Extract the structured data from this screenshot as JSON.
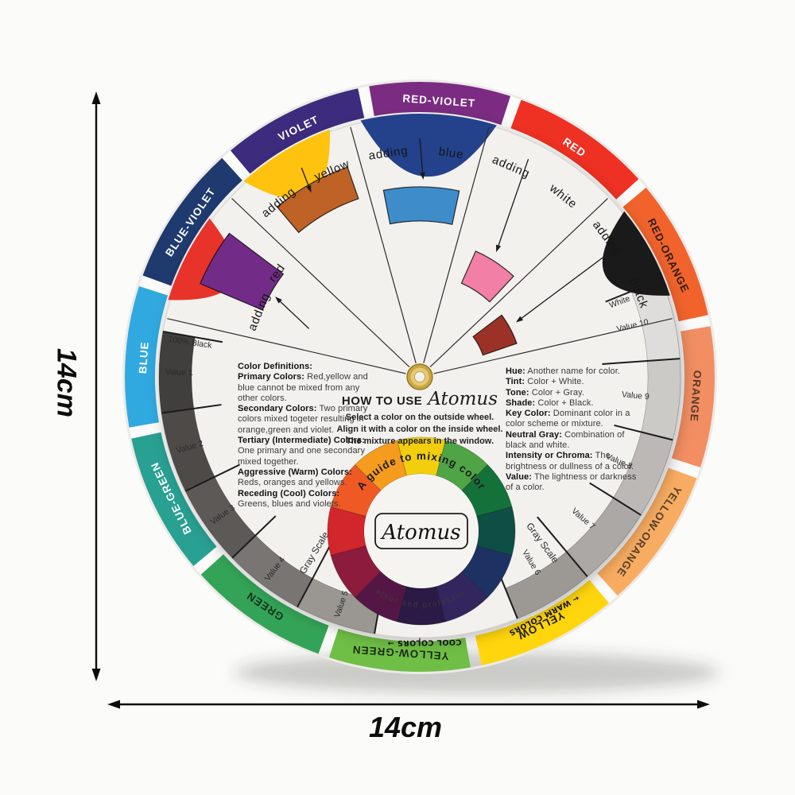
{
  "dimensions": {
    "width_label": "14cm",
    "height_label": "14cm"
  },
  "outer_ring": {
    "segments": [
      {
        "label": "RED-VIOLET",
        "color": "#7B2C82",
        "text_color": "#FFFFFF"
      },
      {
        "label": "RED",
        "color": "#EF3123",
        "text_color": "#FFFFFF"
      },
      {
        "label": "RED-ORANGE",
        "color": "#F2632C",
        "text_color": "#2E1E15"
      },
      {
        "label": "ORANGE",
        "color": "#F28E62",
        "text_color": "#59392A"
      },
      {
        "label": "YELLOW-ORANGE",
        "color": "#F8AC61",
        "text_color": "#54422B"
      },
      {
        "label": "YELLOW",
        "color": "#FFD60D",
        "text_color": "#1F1C12"
      },
      {
        "label": "YELLOW-GREEN",
        "color": "#6FBE45",
        "text_color": "#1C2A16"
      },
      {
        "label": "GREEN",
        "color": "#33A457",
        "text_color": "#14301C"
      },
      {
        "label": "BLUE-GREEN",
        "color": "#28A092",
        "text_color": "#FFFFFF"
      },
      {
        "label": "BLUE",
        "color": "#30A9E0",
        "text_color": "#FFFFFF"
      },
      {
        "label": "BLUE-VIOLET",
        "color": "#1E3A6E",
        "text_color": "#FFFFFF"
      },
      {
        "label": "VIOLET",
        "color": "#3D2B7D",
        "text_color": "#FFFFFF"
      }
    ],
    "warm_label": "← WARM COLORS",
    "cool_label": "COOL COLORS →"
  },
  "inner_disc": {
    "sectors": [
      {
        "word": "adding",
        "name": "red",
        "wedge_color": "#E8332A",
        "window_color": "#732B88"
      },
      {
        "word": "adding",
        "name": "yellow",
        "wedge_color": "#FFC20E",
        "window_color": "#BF6226"
      },
      {
        "word": "adding",
        "name": "blue",
        "wedge_color": "#24418C",
        "window_color": "#3F8CCB"
      },
      {
        "word": "adding",
        "name": "white",
        "wedge_color": "#F3F1EE",
        "window_color": "#F27FA5"
      },
      {
        "word": "adding",
        "name": "Black",
        "wedge_color": "#1A1A1A",
        "window_color": "#9C3227"
      }
    ],
    "gray_scale_left": {
      "title": "Gray Scale",
      "start_label": "100% Black",
      "labels": [
        "Value 1",
        "Value 2",
        "Value 3",
        "Value 4",
        "Value 5"
      ],
      "colors": [
        "#413F3E",
        "#4D4A48",
        "#5C5956",
        "#787572",
        "#9A9793"
      ]
    },
    "gray_scale_right": {
      "title": "Gray Scale",
      "start_label": "White",
      "labels": [
        "Value 10",
        "Value 9",
        "Value 8",
        "Value 7",
        "Value 6"
      ],
      "colors": [
        "#DEDDDB",
        "#CCCAC7",
        "#BBB8B5",
        "#ABA8A5",
        "#9C9995"
      ]
    }
  },
  "center_text": {
    "how_to": "HOW TO USE",
    "brand": "Atomus",
    "instructions": [
      "Select a color on the outside wheel.",
      "Align it with a color on the inside wheel.",
      "The mixture appears in the window."
    ]
  },
  "definitions_left": [
    {
      "b": "Color Definitions:",
      "r": ""
    },
    {
      "b": "Primary Colors:",
      "r": " Red,yellow and"
    },
    {
      "b": "",
      "r": "blue cannot be mixed from any"
    },
    {
      "b": "",
      "r": "other colors."
    },
    {
      "b": "Secondary Colors:",
      "r": " Two primary"
    },
    {
      "b": "",
      "r": "colors mixed togeter resulting in"
    },
    {
      "b": "",
      "r": "orange,green and violet."
    },
    {
      "b": "Tertiary (Intermediate) Colors:",
      "r": ""
    },
    {
      "b": "",
      "r": "One primary and one secondary"
    },
    {
      "b": "",
      "r": "mixed together."
    },
    {
      "b": "Aggressive (Warm) Colors:",
      "r": ""
    },
    {
      "b": "",
      "r": "Reds, oranges and yellows."
    },
    {
      "b": "Receding (Cool) Colors:",
      "r": ""
    },
    {
      "b": "",
      "r": "Greens, blues and violets."
    }
  ],
  "definitions_right": [
    {
      "b": "Hue:",
      "r": " Another name for color."
    },
    {
      "b": "Tint:",
      "r": " Color + White."
    },
    {
      "b": "Tone:",
      "r": " Color + Gray."
    },
    {
      "b": "Shade:",
      "r": " Color + Black."
    },
    {
      "b": "Key Color:",
      "r": " Dominant color in a"
    },
    {
      "b": "",
      "r": "color scheme or mixture."
    },
    {
      "b": "Neutral Gray:",
      "r": " Combination of"
    },
    {
      "b": "",
      "r": "black and white."
    },
    {
      "b": "Intensity or Chroma:",
      "r": " The"
    },
    {
      "b": "",
      "r": "brightness or dullness of a color."
    },
    {
      "b": "Value:",
      "r": " The lightness or darkness"
    },
    {
      "b": "",
      "r": "of a color."
    }
  ],
  "mini_wheel": {
    "top_text": "A guide to mixing color",
    "brand": "Atomus",
    "bottom_text": "For amateur and professional use",
    "colors": [
      "#F2CE0F",
      "#4FA445",
      "#15713A",
      "#0E4F45",
      "#1D3263",
      "#33265E",
      "#2B1A45",
      "#541745",
      "#8C1B3D",
      "#D1262B",
      "#EF5A24",
      "#F59B1E"
    ]
  }
}
